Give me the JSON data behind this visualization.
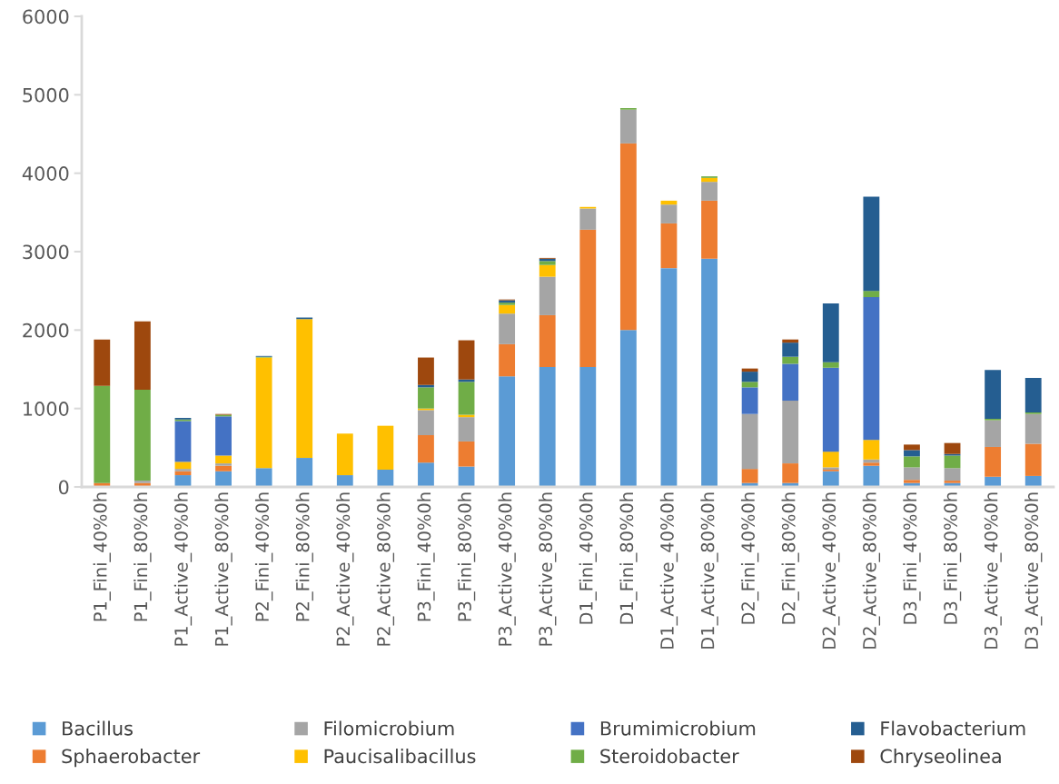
{
  "chart_data": {
    "type": "bar",
    "stacked": true,
    "categories": [
      "P1_Fini_40%0h",
      "P1_Fini_80%0h",
      "P1_Active_40%0h",
      "P1_Active_80%0h",
      "P2_Fini_40%0h",
      "P2_Fini_80%0h",
      "P2_Active_40%0h",
      "P2_Active_80%0h",
      "P3_Fini_40%0h",
      "P3_Fini_80%0h",
      "P3_Active_40%0h",
      "P3_Active_80%0h",
      "D1_Fini_40%0h",
      "D1_Fini_80%0h",
      "D1_Active_40%0h",
      "D1_Active_80%0h",
      "D2_Fini_40%0h",
      "D2_Fini_80%0h",
      "D2_Active_40%0h",
      "D2_Active_80%0h",
      "D3_Fini_40%0h",
      "D3_Fini_80%0h",
      "D3_Active_40%0h",
      "D3_Active_80%0h"
    ],
    "series": [
      {
        "name": "Bacillus",
        "color": "#5b9bd5",
        "values": [
          0,
          0,
          150,
          200,
          240,
          370,
          150,
          220,
          310,
          260,
          1410,
          1530,
          1530,
          2000,
          2790,
          2910,
          50,
          50,
          200,
          270,
          50,
          50,
          130,
          140
        ]
      },
      {
        "name": "Sphaerobacter",
        "color": "#ed7d31",
        "values": [
          50,
          50,
          50,
          70,
          0,
          0,
          0,
          0,
          350,
          320,
          410,
          660,
          1750,
          2380,
          570,
          740,
          180,
          250,
          20,
          40,
          40,
          30,
          380,
          410
        ]
      },
      {
        "name": "Filomicrobium",
        "color": "#a5a5a5",
        "values": [
          0,
          30,
          30,
          30,
          0,
          0,
          0,
          0,
          320,
          310,
          390,
          490,
          270,
          430,
          240,
          240,
          700,
          800,
          30,
          40,
          160,
          160,
          340,
          380
        ]
      },
      {
        "name": "Paucisalibacillus",
        "color": "#ffc000",
        "values": [
          0,
          0,
          90,
          100,
          1410,
          1770,
          530,
          560,
          20,
          30,
          110,
          150,
          20,
          0,
          50,
          50,
          0,
          0,
          200,
          250,
          0,
          0,
          0,
          0
        ]
      },
      {
        "name": "Brumimicrobium",
        "color": "#4472c4",
        "values": [
          0,
          0,
          520,
          500,
          0,
          0,
          0,
          0,
          0,
          0,
          0,
          0,
          0,
          0,
          0,
          0,
          340,
          470,
          1070,
          1820,
          0,
          0,
          0,
          0
        ]
      },
      {
        "name": "Steroidobacter",
        "color": "#70ad47",
        "values": [
          1240,
          1160,
          20,
          20,
          10,
          0,
          0,
          0,
          270,
          420,
          30,
          50,
          0,
          20,
          0,
          20,
          70,
          90,
          70,
          80,
          140,
          160,
          20,
          20
        ]
      },
      {
        "name": "Flavobacterium",
        "color": "#255e91",
        "values": [
          0,
          0,
          20,
          0,
          10,
          20,
          0,
          0,
          30,
          30,
          30,
          30,
          0,
          0,
          0,
          0,
          130,
          180,
          750,
          1200,
          80,
          20,
          620,
          440
        ]
      },
      {
        "name": "Chryseolinea",
        "color": "#9e480e",
        "values": [
          590,
          870,
          0,
          10,
          0,
          0,
          0,
          0,
          350,
          500,
          10,
          10,
          0,
          0,
          0,
          0,
          40,
          40,
          0,
          0,
          70,
          140,
          0,
          0
        ]
      }
    ],
    "ylim": [
      0,
      6000
    ],
    "yticks": [
      0,
      1000,
      2000,
      3000,
      4000,
      5000,
      6000
    ],
    "grid": false,
    "legend": "bottom"
  }
}
